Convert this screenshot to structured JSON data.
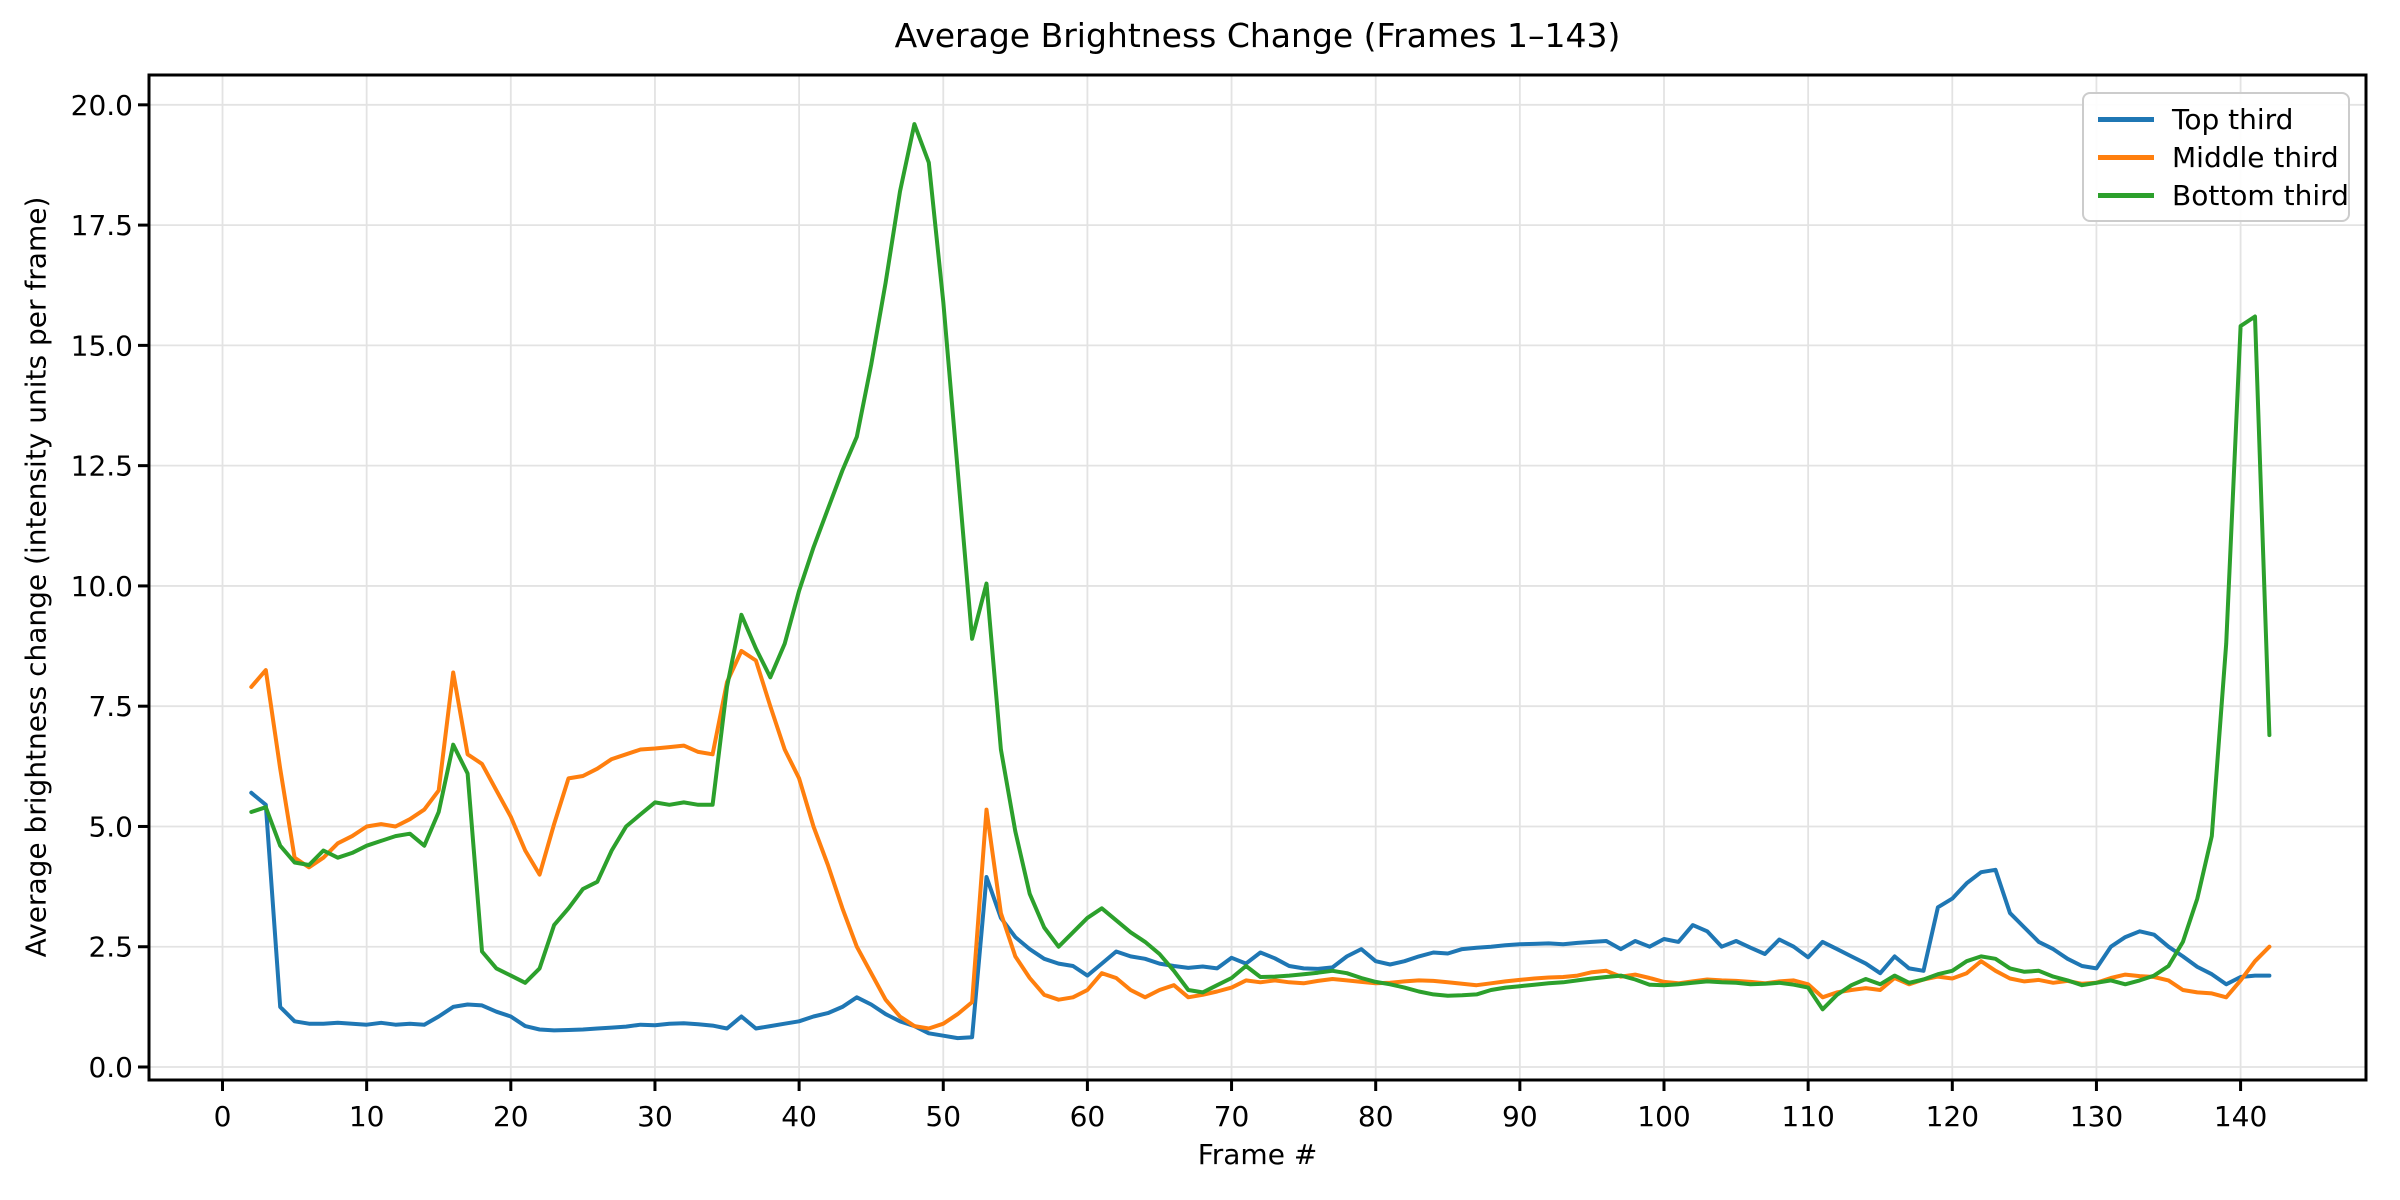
{
  "figure": {
    "background": "#ffffff"
  },
  "chart_data": {
    "type": "line",
    "title": "Average Brightness Change (Frames 1–143)",
    "xlabel": "Frame #",
    "ylabel": "Average brightness change (intensity units per frame)",
    "grid": true,
    "grid_color": "#e3e3e3",
    "spine_color": "#000000",
    "text_color": "#000000",
    "legend_position": "upper right",
    "xlim": [
      -5.1,
      148.7
    ],
    "ylim": [
      -0.27,
      20.62
    ],
    "x_tick_values": [
      0,
      10,
      20,
      30,
      40,
      50,
      60,
      70,
      80,
      90,
      100,
      110,
      120,
      130,
      140
    ],
    "x_tick_labels": [
      "0",
      "10",
      "20",
      "30",
      "40",
      "50",
      "60",
      "70",
      "80",
      "90",
      "100",
      "110",
      "120",
      "130",
      "140"
    ],
    "y_tick_values": [
      0,
      2.5,
      5,
      7.5,
      10,
      12.5,
      15,
      17.5,
      20
    ],
    "y_tick_labels": [
      "0.0",
      "2.5",
      "5.0",
      "7.5",
      "10.0",
      "12.5",
      "15.0",
      "17.5",
      "20.0"
    ],
    "x": [
      2,
      3,
      4,
      5,
      6,
      7,
      8,
      9,
      10,
      11,
      12,
      13,
      14,
      15,
      16,
      17,
      18,
      19,
      20,
      21,
      22,
      23,
      24,
      25,
      26,
      27,
      28,
      29,
      30,
      31,
      32,
      33,
      34,
      35,
      36,
      37,
      38,
      39,
      40,
      41,
      42,
      43,
      44,
      45,
      46,
      47,
      48,
      49,
      50,
      51,
      52,
      53,
      54,
      55,
      56,
      57,
      58,
      59,
      60,
      61,
      62,
      63,
      64,
      65,
      66,
      67,
      68,
      69,
      70,
      71,
      72,
      73,
      74,
      75,
      76,
      77,
      78,
      79,
      80,
      81,
      82,
      83,
      84,
      85,
      86,
      87,
      88,
      89,
      90,
      91,
      92,
      93,
      94,
      95,
      96,
      97,
      98,
      99,
      100,
      101,
      102,
      103,
      104,
      105,
      106,
      107,
      108,
      109,
      110,
      111,
      112,
      113,
      114,
      115,
      116,
      117,
      118,
      119,
      120,
      121,
      122,
      123,
      124,
      125,
      126,
      127,
      128,
      129,
      130,
      131,
      132,
      133,
      134,
      135,
      136,
      137,
      138,
      139,
      140,
      141,
      142
    ],
    "series": [
      {
        "name": "Top third",
        "color": "#1f77b4",
        "values": [
          5.7,
          5.45,
          1.25,
          0.95,
          0.9,
          0.9,
          0.92,
          0.9,
          0.88,
          0.92,
          0.88,
          0.9,
          0.88,
          1.05,
          1.25,
          1.3,
          1.28,
          1.15,
          1.05,
          0.85,
          0.78,
          0.76,
          0.77,
          0.78,
          0.8,
          0.82,
          0.84,
          0.88,
          0.87,
          0.9,
          0.91,
          0.89,
          0.86,
          0.8,
          1.05,
          0.8,
          0.85,
          0.9,
          0.95,
          1.05,
          1.12,
          1.25,
          1.45,
          1.3,
          1.1,
          0.95,
          0.85,
          0.7,
          0.65,
          0.6,
          0.62,
          3.95,
          3.1,
          2.7,
          2.45,
          2.25,
          2.15,
          2.1,
          1.9,
          2.15,
          2.4,
          2.3,
          2.25,
          2.15,
          2.1,
          2.06,
          2.09,
          2.05,
          2.27,
          2.15,
          2.38,
          2.26,
          2.1,
          2.05,
          2.04,
          2.07,
          2.3,
          2.45,
          2.2,
          2.13,
          2.2,
          2.3,
          2.38,
          2.36,
          2.45,
          2.48,
          2.5,
          2.53,
          2.55,
          2.56,
          2.57,
          2.55,
          2.58,
          2.6,
          2.62,
          2.45,
          2.62,
          2.5,
          2.66,
          2.6,
          2.95,
          2.82,
          2.5,
          2.62,
          2.48,
          2.35,
          2.65,
          2.5,
          2.28,
          2.6,
          2.45,
          2.3,
          2.15,
          1.95,
          2.3,
          2.05,
          2.0,
          3.32,
          3.5,
          3.82,
          4.05,
          4.1,
          3.2,
          2.9,
          2.6,
          2.45,
          2.25,
          2.1,
          2.05,
          2.5,
          2.7,
          2.82,
          2.75,
          2.5,
          2.3,
          2.08,
          1.93,
          1.72,
          1.87,
          1.9,
          1.9
        ]
      },
      {
        "name": "Middle third",
        "color": "#ff7f0e",
        "values": [
          7.9,
          8.25,
          6.2,
          4.35,
          4.15,
          4.35,
          4.65,
          4.8,
          5.0,
          5.05,
          5.0,
          5.15,
          5.35,
          5.75,
          8.2,
          6.5,
          6.3,
          5.75,
          5.2,
          4.5,
          4.0,
          5.05,
          6.0,
          6.05,
          6.2,
          6.4,
          6.5,
          6.6,
          6.62,
          6.65,
          6.68,
          6.55,
          6.5,
          8.0,
          8.65,
          8.45,
          7.5,
          6.6,
          6.0,
          5.0,
          4.2,
          3.3,
          2.5,
          1.95,
          1.4,
          1.05,
          0.85,
          0.8,
          0.9,
          1.1,
          1.35,
          5.35,
          3.2,
          2.3,
          1.85,
          1.5,
          1.4,
          1.45,
          1.6,
          1.95,
          1.85,
          1.6,
          1.45,
          1.6,
          1.7,
          1.45,
          1.5,
          1.57,
          1.65,
          1.8,
          1.76,
          1.8,
          1.76,
          1.74,
          1.79,
          1.83,
          1.8,
          1.77,
          1.74,
          1.75,
          1.78,
          1.8,
          1.79,
          1.76,
          1.73,
          1.7,
          1.74,
          1.78,
          1.81,
          1.84,
          1.86,
          1.87,
          1.9,
          1.97,
          2.0,
          1.88,
          1.92,
          1.85,
          1.77,
          1.74,
          1.78,
          1.82,
          1.8,
          1.79,
          1.77,
          1.74,
          1.78,
          1.8,
          1.72,
          1.45,
          1.55,
          1.6,
          1.64,
          1.6,
          1.85,
          1.72,
          1.82,
          1.88,
          1.84,
          1.95,
          2.2,
          2.0,
          1.84,
          1.78,
          1.81,
          1.75,
          1.79,
          1.73,
          1.75,
          1.85,
          1.92,
          1.89,
          1.87,
          1.8,
          1.6,
          1.55,
          1.53,
          1.45,
          1.8,
          2.2,
          2.5
        ]
      },
      {
        "name": "Bottom third",
        "color": "#2ca02c",
        "values": [
          5.3,
          5.4,
          4.6,
          4.25,
          4.2,
          4.5,
          4.35,
          4.45,
          4.6,
          4.7,
          4.8,
          4.85,
          4.6,
          5.3,
          6.7,
          6.1,
          2.4,
          2.05,
          1.9,
          1.75,
          2.05,
          2.95,
          3.3,
          3.7,
          3.85,
          4.5,
          5.0,
          5.25,
          5.5,
          5.45,
          5.5,
          5.45,
          5.45,
          7.9,
          9.4,
          8.7,
          8.1,
          8.8,
          9.9,
          10.8,
          11.6,
          12.4,
          13.1,
          14.6,
          16.3,
          18.2,
          19.6,
          18.8,
          15.9,
          12.4,
          8.9,
          10.05,
          6.6,
          4.9,
          3.6,
          2.9,
          2.5,
          2.8,
          3.1,
          3.3,
          3.05,
          2.8,
          2.6,
          2.35,
          2.0,
          1.6,
          1.55,
          1.7,
          1.85,
          2.1,
          1.87,
          1.88,
          1.9,
          1.93,
          1.96,
          2.0,
          1.95,
          1.85,
          1.77,
          1.72,
          1.65,
          1.57,
          1.51,
          1.48,
          1.49,
          1.51,
          1.6,
          1.65,
          1.68,
          1.71,
          1.74,
          1.76,
          1.8,
          1.84,
          1.87,
          1.9,
          1.82,
          1.71,
          1.7,
          1.72,
          1.75,
          1.78,
          1.76,
          1.75,
          1.72,
          1.73,
          1.75,
          1.71,
          1.65,
          1.2,
          1.5,
          1.7,
          1.83,
          1.72,
          1.9,
          1.75,
          1.82,
          1.93,
          2.0,
          2.2,
          2.3,
          2.25,
          2.05,
          1.98,
          2.0,
          1.88,
          1.8,
          1.7,
          1.75,
          1.8,
          1.72,
          1.8,
          1.9,
          2.1,
          2.6,
          3.5,
          4.8,
          8.8,
          15.4,
          15.6,
          6.9
        ]
      }
    ]
  }
}
